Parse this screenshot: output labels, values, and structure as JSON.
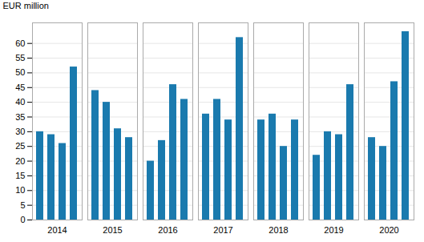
{
  "chart_data": {
    "type": "bar",
    "categories": [
      "2014",
      "2014",
      "2014",
      "2014",
      "2015",
      "2015",
      "2015",
      "2015",
      "2016",
      "2016",
      "2016",
      "2016",
      "2017",
      "2017",
      "2017",
      "2017",
      "2018",
      "2018",
      "2018",
      "2018",
      "2019",
      "2019",
      "2019",
      "2019",
      "2020",
      "2020",
      "2020",
      "2020"
    ],
    "values": [
      30,
      29,
      26,
      52,
      44,
      40,
      31,
      28,
      20,
      27,
      46,
      41,
      36,
      41,
      34,
      62,
      34,
      36,
      25,
      34,
      22,
      30,
      29,
      46,
      28,
      25,
      47,
      64
    ],
    "color": "#1a7aae",
    "ylabel": "EUR million",
    "ylim": [
      0,
      67
    ],
    "yticks": [
      0,
      5,
      10,
      15,
      20,
      25,
      30,
      35,
      40,
      45,
      50,
      55,
      60
    ],
    "grid": true
  }
}
